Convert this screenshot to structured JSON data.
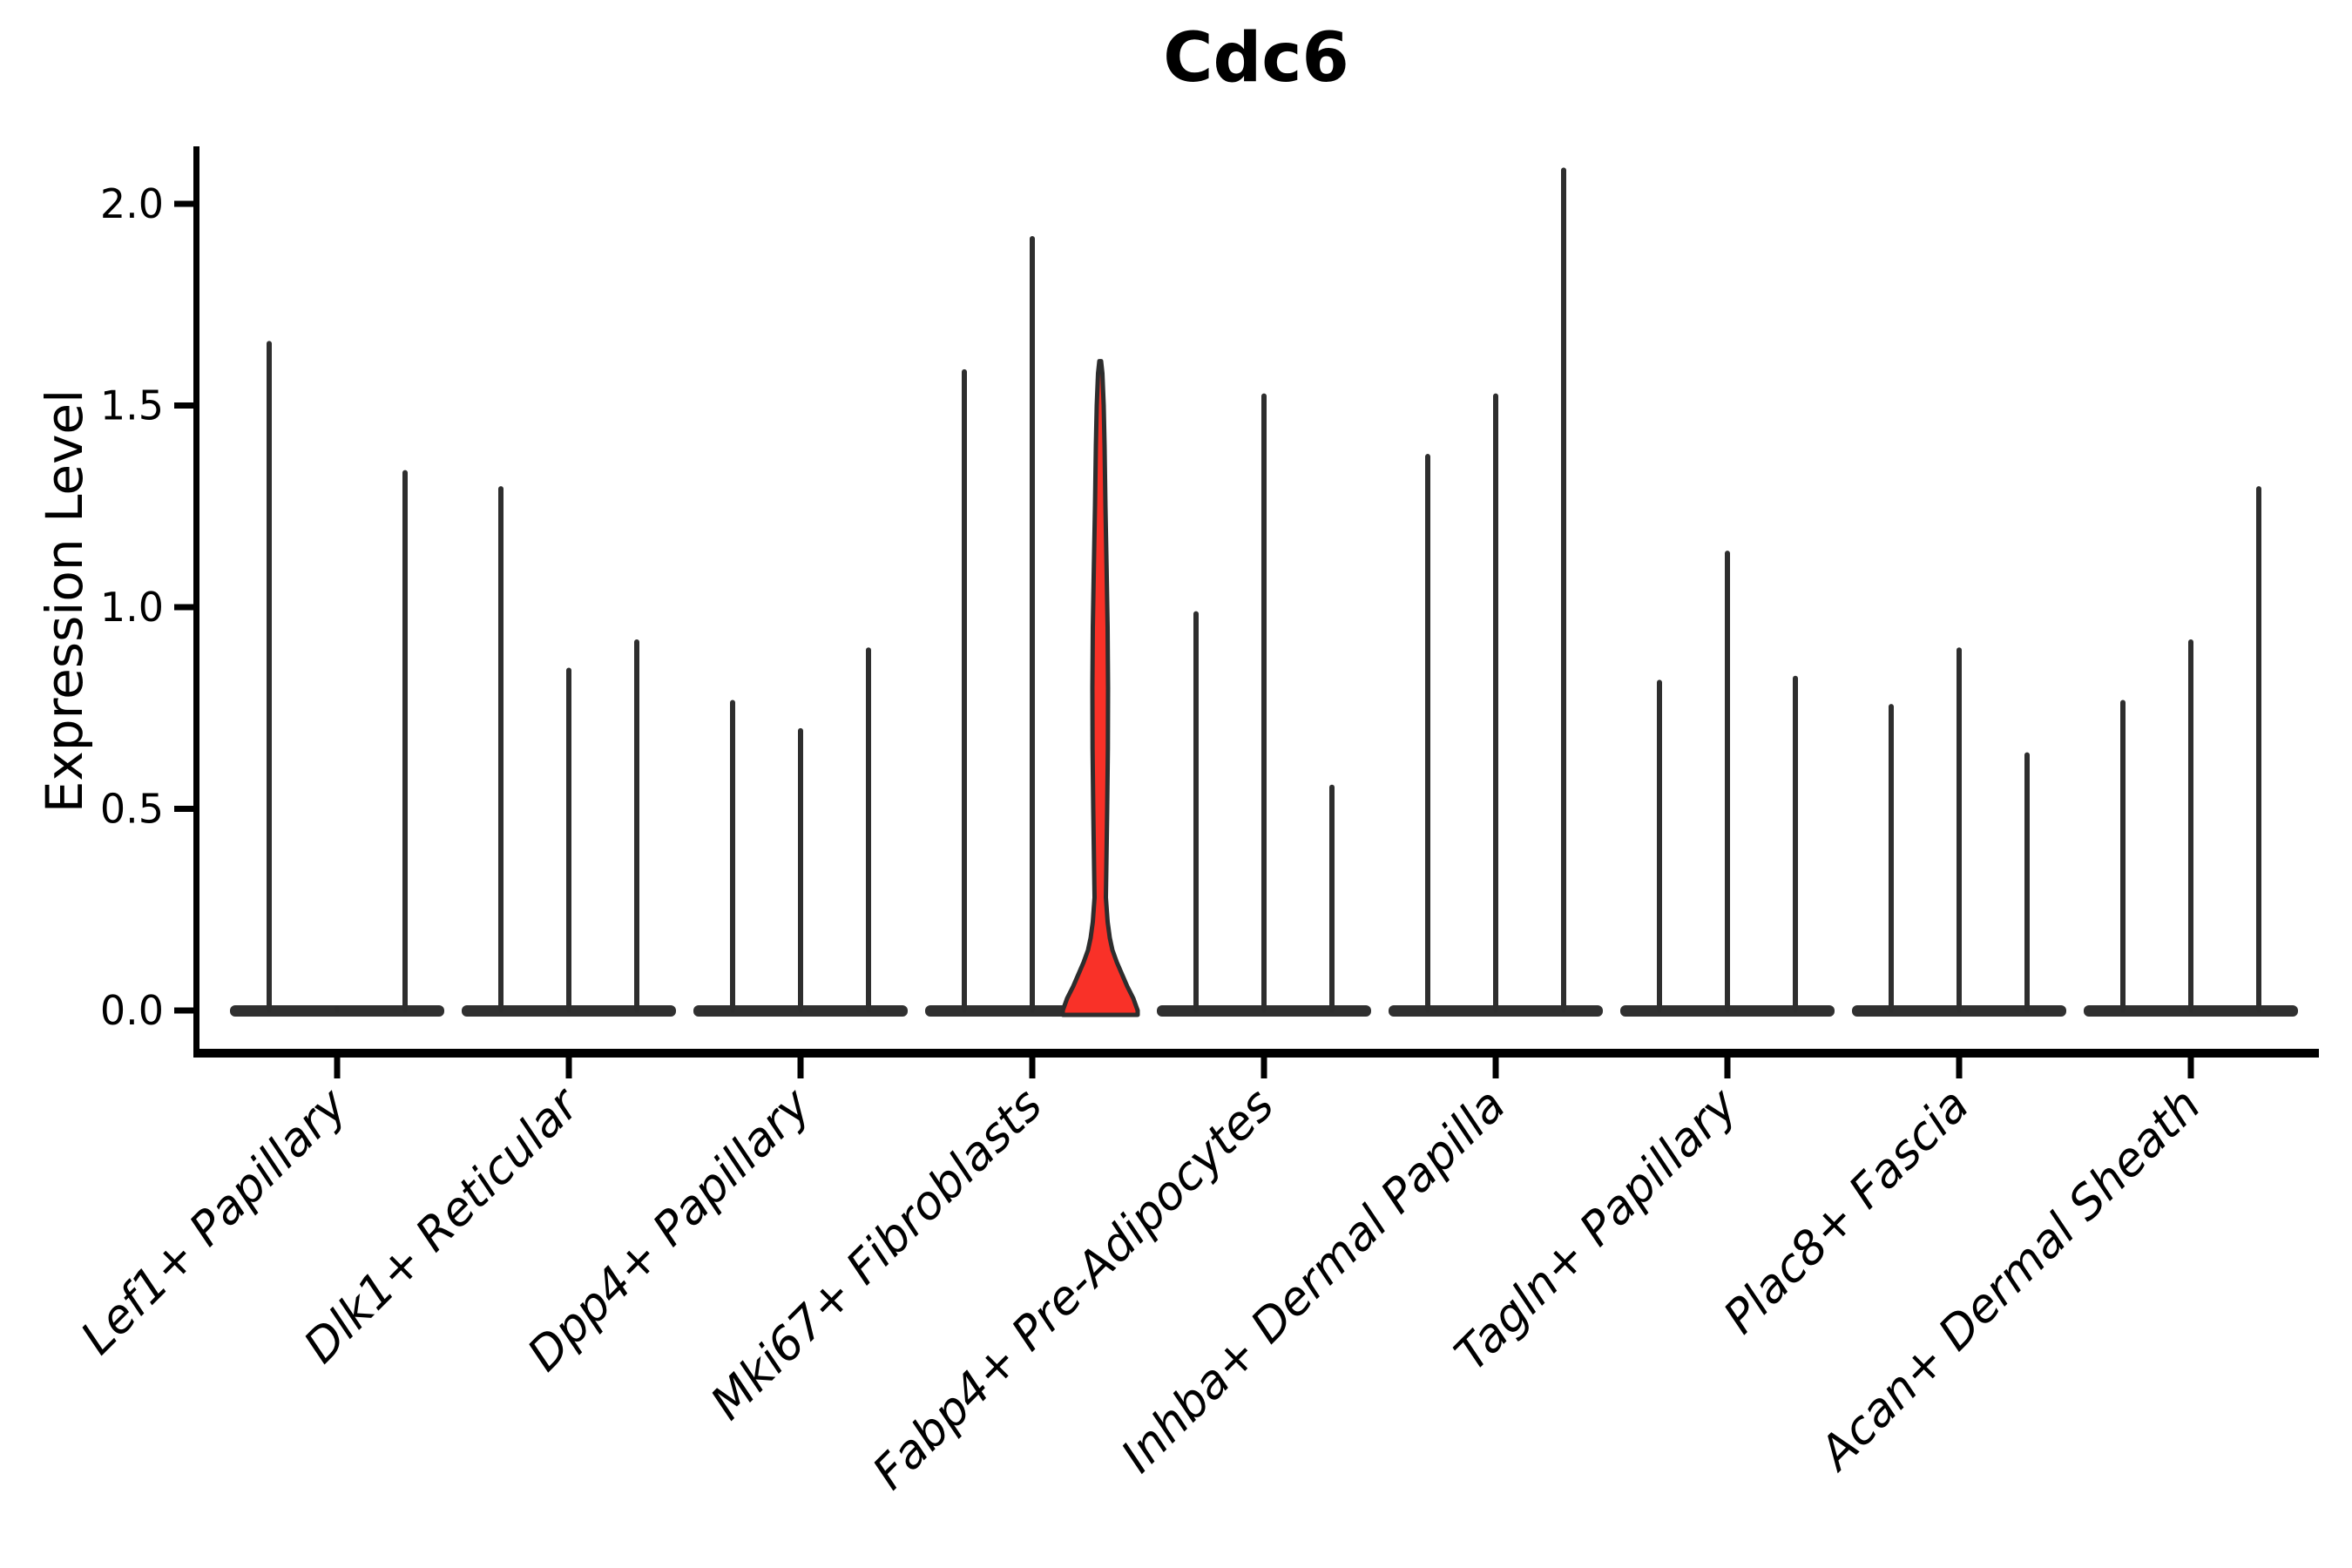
{
  "chart_data": {
    "type": "violin",
    "title": "Cdc6",
    "ylabel": "Expression Level",
    "xlabel": "",
    "ylim": [
      0,
      2.15
    ],
    "yticks": [
      0.0,
      0.5,
      1.0,
      1.5,
      2.0
    ],
    "ytick_labels": [
      "0.0",
      "0.5",
      "1.0",
      "1.5",
      "2.0"
    ],
    "grid": false,
    "legend_position": "none",
    "violins_per_category": 3,
    "categories": [
      "Lef1+ Papillary",
      "Dlk1+ Reticular",
      "Dpp4+ Papillary",
      "Mki67+ Fibroblasts",
      "Fabp4+ Pre-Adipocytes",
      "Inhba+ Dermal Papilla",
      "Tagln+ Papillary",
      "Plac8+ Fascia",
      "Acan+ Dermal Sheath"
    ],
    "series": [
      {
        "category": "Lef1+ Papillary",
        "violin_max": [
          1.66,
          0.01,
          1.34
        ]
      },
      {
        "category": "Dlk1+ Reticular",
        "violin_max": [
          1.3,
          0.85,
          0.92
        ]
      },
      {
        "category": "Dpp4+ Papillary",
        "violin_max": [
          0.77,
          0.7,
          0.9
        ]
      },
      {
        "category": "Mki67+ Fibroblasts",
        "violin_max": [
          1.59,
          1.92,
          1.61
        ]
      },
      {
        "category": "Fabp4+ Pre-Adipocytes",
        "violin_max": [
          0.99,
          1.53,
          0.56
        ]
      },
      {
        "category": "Inhba+ Dermal Papilla",
        "violin_max": [
          1.38,
          1.53,
          2.09
        ]
      },
      {
        "category": "Tagln+ Papillary",
        "violin_max": [
          0.82,
          1.14,
          0.83
        ]
      },
      {
        "category": "Plac8+ Fascia",
        "violin_max": [
          0.76,
          0.9,
          0.64
        ]
      },
      {
        "category": "Acan+ Dermal Sheath",
        "violin_max": [
          0.77,
          0.92,
          1.3
        ]
      }
    ],
    "highlight": {
      "category": "Mki67+ Fibroblasts",
      "category_index": 3,
      "violin_index": 2,
      "max": 1.61,
      "fill_color": "#f93128",
      "profile": [
        [
          0.0,
          43
        ],
        [
          0.03,
          38
        ],
        [
          0.06,
          31
        ],
        [
          0.09,
          25
        ],
        [
          0.12,
          19
        ],
        [
          0.15,
          14
        ],
        [
          0.18,
          11
        ],
        [
          0.22,
          8.5
        ],
        [
          0.28,
          6.5
        ],
        [
          0.35,
          7
        ],
        [
          0.5,
          8
        ],
        [
          0.65,
          8.8
        ],
        [
          0.8,
          9
        ],
        [
          0.95,
          8.5
        ],
        [
          1.1,
          7.3
        ],
        [
          1.25,
          6
        ],
        [
          1.4,
          5
        ],
        [
          1.5,
          4
        ],
        [
          1.58,
          2.5
        ],
        [
          1.61,
          1
        ]
      ]
    },
    "colors": {
      "violin_line": "#2e2e2e",
      "base_bar": "#303030",
      "axis": "#000000",
      "text": "#000000",
      "highlight_fill": "#f93128",
      "highlight_outline": "#2d2d2d"
    }
  }
}
